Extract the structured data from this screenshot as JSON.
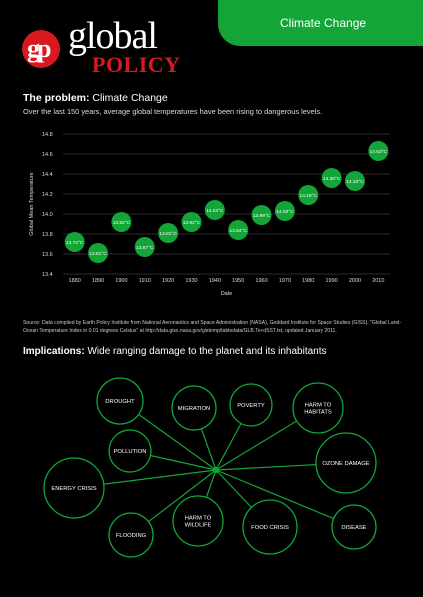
{
  "header": {
    "tab_label": "Climate Change"
  },
  "logo": {
    "mark": "gp",
    "word1": "global",
    "word2": "POLICY"
  },
  "problem": {
    "heading_bold": "The problem:",
    "heading_rest": " Climate Change",
    "subtitle": "Over the last 150 years, average global temperatures have been rising to dangerous levels."
  },
  "chart_data": {
    "type": "scatter",
    "ylabel": "Global Mean Temperature",
    "xlabel": "Date",
    "ylim": [
      13.4,
      14.8
    ],
    "yticks": [
      "14.8",
      "14.6",
      "14.4",
      "14.2",
      "14.0",
      "13.8",
      "13.6",
      "13.4"
    ],
    "xticks": [
      "1880",
      "1890",
      "1900",
      "1910",
      "1920",
      "1930",
      "1940",
      "1950",
      "1960",
      "1970",
      "1980",
      "1990",
      "2000",
      "2010"
    ],
    "grid": true,
    "points": [
      {
        "x": 1880,
        "y": 13.72,
        "label": "13.72°C"
      },
      {
        "x": 1890,
        "y": 13.61,
        "label": "13.61°C"
      },
      {
        "x": 1900,
        "y": 13.92,
        "label": "13.92°C"
      },
      {
        "x": 1910,
        "y": 13.67,
        "label": "13.67°C"
      },
      {
        "x": 1920,
        "y": 13.81,
        "label": "13.81°C"
      },
      {
        "x": 1930,
        "y": 13.92,
        "label": "13.92°C"
      },
      {
        "x": 1940,
        "y": 14.04,
        "label": "14.04°C"
      },
      {
        "x": 1950,
        "y": 13.84,
        "label": "13.84°C"
      },
      {
        "x": 1960,
        "y": 13.99,
        "label": "13.99°C"
      },
      {
        "x": 1970,
        "y": 14.03,
        "label": "14.03°C"
      },
      {
        "x": 1980,
        "y": 14.19,
        "label": "14.19°C"
      },
      {
        "x": 1990,
        "y": 14.36,
        "label": "14.36°C"
      },
      {
        "x": 2000,
        "y": 14.33,
        "label": "14.33°C"
      },
      {
        "x": 2010,
        "y": 14.63,
        "label": "14.63°C"
      }
    ]
  },
  "source": "Source: Data compiled by Earth Policy Institute from National Aeronautics and Space Administration (NASA), Goddard Institute for Space Studies (GISS), \"Global Land-Ocean Temperature Index in 0.01 degrees Celsius\" at http://data.giss.nasa.gov/gistemp/tabledata/GLB.Ts+dSST.txt, updated January 2011.",
  "implications": {
    "heading_bold": "Implications:",
    "heading_rest": " Wide ranging damage to the planet and its inhabitants",
    "nodes": [
      "DROUGHT",
      "MIGRATION",
      "POVERTY",
      "HARM TO HABITATS",
      "POLLUTION",
      "OZONE DAMAGE",
      "ENERGY CRISIS",
      "HARM TO WILDLIFE",
      "FOOD CRISIS",
      "FLOODING",
      "DISEASE"
    ]
  },
  "colors": {
    "green": "#13a538",
    "red": "#d71920"
  }
}
